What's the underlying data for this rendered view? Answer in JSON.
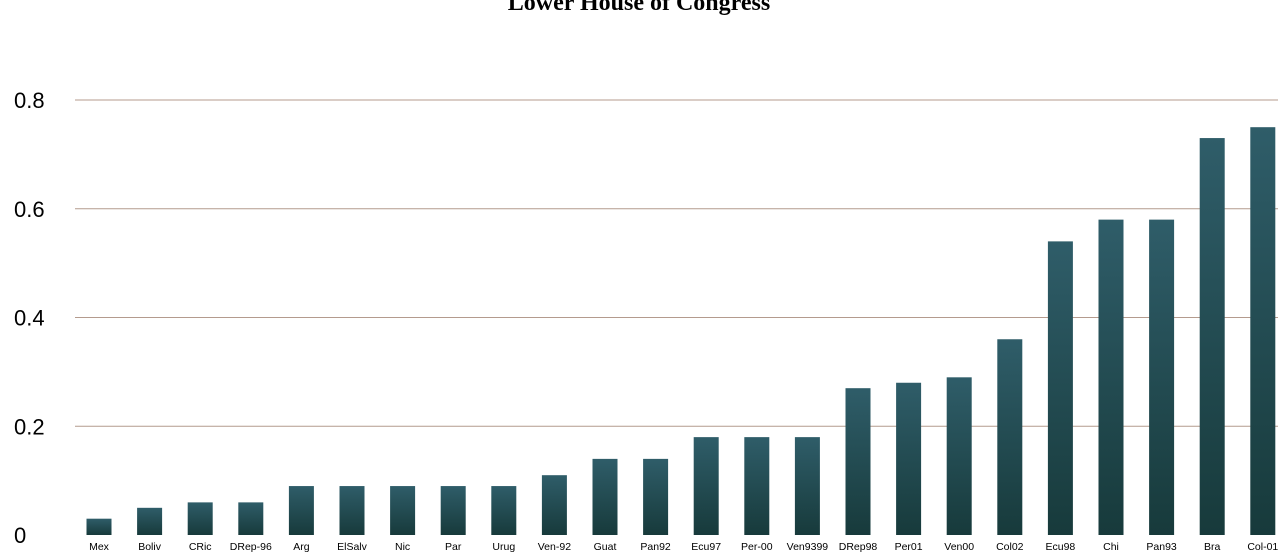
{
  "chart_data": {
    "type": "bar",
    "title": "Lower House of Congress",
    "xlabel": "",
    "ylabel": "",
    "ylim": [
      0,
      0.8
    ],
    "yticks": [
      0,
      0.2,
      0.4,
      0.6,
      0.8
    ],
    "ytick_labels": [
      "0",
      "0.2",
      "0.4",
      "0.6",
      "0.8"
    ],
    "grid": true,
    "categories": [
      "Mex",
      "Boliv",
      "CRic",
      "DRep-96",
      "Arg",
      "ElSalv",
      "Nic",
      "Par",
      "Urug",
      "Ven-92",
      "Guat",
      "Pan92",
      "Ecu97",
      "Per-00",
      "Ven9399",
      "DRep98",
      "Per01",
      "Ven00",
      "Col02",
      "Ecu98",
      "Chi",
      "Pan93",
      "Bra",
      "Col-01"
    ],
    "values": [
      0.03,
      0.05,
      0.06,
      0.06,
      0.09,
      0.09,
      0.09,
      0.09,
      0.09,
      0.11,
      0.14,
      0.14,
      0.18,
      0.18,
      0.18,
      0.27,
      0.28,
      0.29,
      0.36,
      0.54,
      0.58,
      0.58,
      0.73,
      0.75
    ],
    "colors": {
      "bar_top": "#2f5d69",
      "bar_bottom": "#173a3b",
      "grid": "#b49b8e",
      "text": "#000000"
    }
  }
}
